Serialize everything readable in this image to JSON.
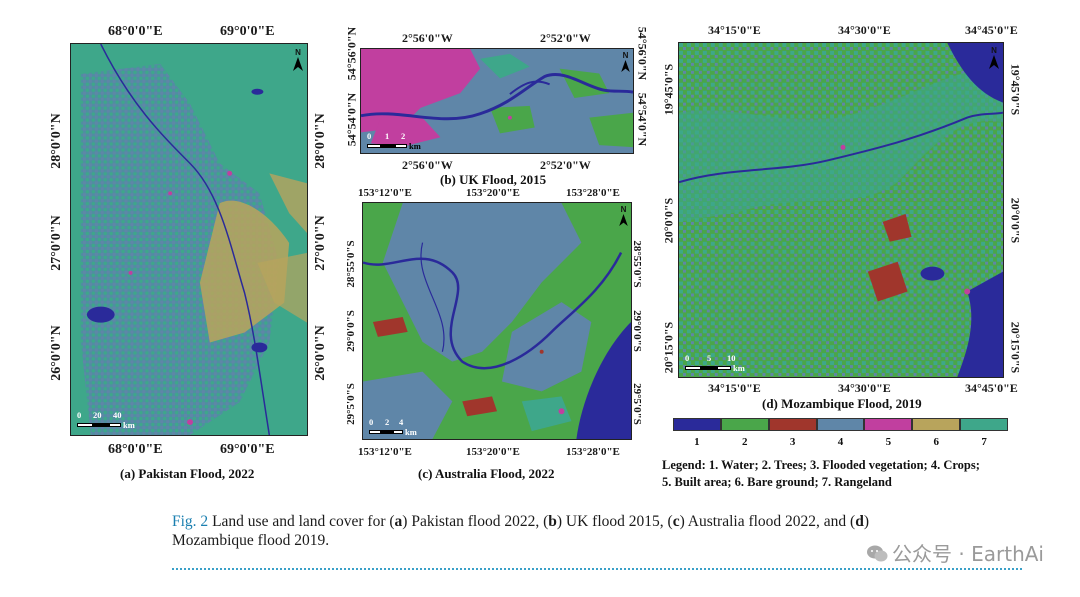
{
  "figure": {
    "panel_a": {
      "caption": "(a) Pakistan Flood, 2022",
      "top_ticks": [
        "68°0'0\"E",
        "69°0'0\"E"
      ],
      "bottom_ticks": [
        "68°0'0\"E",
        "69°0'0\"E"
      ],
      "left_ticks": [
        "28°0'0\"N",
        "27°0'0\"N",
        "26°0'0\"N"
      ],
      "right_ticks": [
        "28°0'0\"N",
        "27°0'0\"N",
        "26°0'0\"N"
      ],
      "scale": {
        "labels": [
          "0",
          "20",
          "40"
        ],
        "unit": "km"
      },
      "north": "N"
    },
    "panel_b": {
      "caption": "(b) UK Flood, 2015",
      "top_ticks": [
        "2°56'0\"W",
        "2°52'0\"W"
      ],
      "bottom_ticks": [
        "2°56'0\"W",
        "2°52'0\"W"
      ],
      "left_ticks": [
        "54°56'0\"N",
        "54°54'0\"N"
      ],
      "right_ticks": [
        "54°56'0\"N",
        "54°54'0\"N"
      ],
      "scale": {
        "labels": [
          "0",
          "1",
          "2"
        ],
        "unit": "km"
      },
      "north": "N"
    },
    "panel_c": {
      "caption": "(c) Australia Flood, 2022",
      "top_ticks": [
        "153°12'0\"E",
        "153°20'0\"E",
        "153°28'0\"E"
      ],
      "bottom_ticks": [
        "153°12'0\"E",
        "153°20'0\"E",
        "153°28'0\"E"
      ],
      "left_ticks": [
        "28°55'0\"S",
        "29°0'0\"S",
        "29°5'0\"S"
      ],
      "right_ticks": [
        "28°55'0\"S",
        "29°0'0\"S",
        "29°5'0\"S"
      ],
      "scale": {
        "labels": [
          "0",
          "2",
          "4"
        ],
        "unit": "km"
      },
      "north": "N"
    },
    "panel_d": {
      "caption": "(d) Mozambique Flood, 2019",
      "top_ticks": [
        "34°15'0\"E",
        "34°30'0\"E",
        "34°45'0\"E"
      ],
      "bottom_ticks": [
        "34°15'0\"E",
        "34°30'0\"E",
        "34°45'0\"E"
      ],
      "left_ticks": [
        "19°45'0\"S",
        "20°0'0\"S",
        "20°15'0\"S"
      ],
      "right_ticks": [
        "19°45'0\"S",
        "20°0'0\"S",
        "20°15'0\"S"
      ],
      "scale": {
        "labels": [
          "0",
          "5",
          "10"
        ],
        "unit": "km"
      },
      "north": "N"
    },
    "legend": {
      "classes": [
        {
          "num": "1",
          "color": "#2a2a9a"
        },
        {
          "num": "2",
          "color": "#4aa64a"
        },
        {
          "num": "3",
          "color": "#a0362c"
        },
        {
          "num": "4",
          "color": "#5f86a8"
        },
        {
          "num": "5",
          "color": "#c13f9f"
        },
        {
          "num": "6",
          "color": "#b8a45c"
        },
        {
          "num": "7",
          "color": "#3ea78a"
        }
      ],
      "line1": "Legend: 1. Water; 2. Trees; 3. Flooded vegetation; 4. Crops;",
      "line2": "5. Built area; 6. Bare ground; 7. Rangeland"
    }
  },
  "caption": {
    "label": "Fig. 2",
    "t1": "  Land use and land cover for (",
    "a": "a",
    "t2": ") Pakistan flood 2022, (",
    "b": "b",
    "t3": ") UK flood 2015, (",
    "c": "c",
    "t4": ") Australia flood 2022, and (",
    "d": "d",
    "t5": ")",
    "line2": "Mozambique flood 2019."
  },
  "watermark": "公众号 · EarthAi"
}
